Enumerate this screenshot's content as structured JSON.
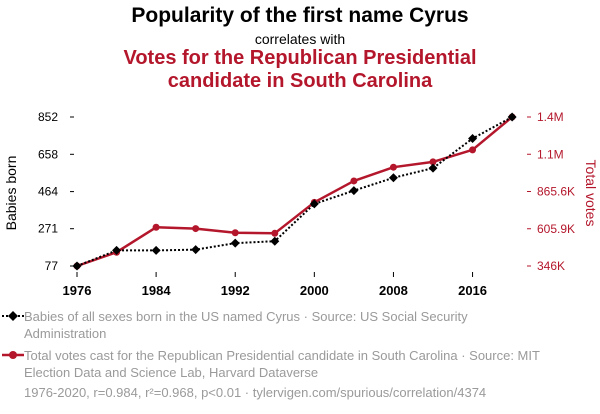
{
  "header": {
    "title": "Popularity of the first name Cyrus",
    "subtitle": "correlates with",
    "title2": "Votes for the Republican Presidential candidate in South Carolina"
  },
  "legend": {
    "series1": "Babies of all sexes born in the US named Cyrus · Source: US Social Security Administration",
    "series2": "Total votes cast for the Republican Presidential candidate in South Carolina · Source: MIT Election Data and Science Lab, Harvard Dataverse"
  },
  "footer": "1976-2020, r=0.984, r²=0.968, p<0.01 · tylervigen.com/spurious/correlation/4374",
  "colors": {
    "series1": "#000000",
    "series2": "#b4172c",
    "axis_left": "#000000",
    "axis_right": "#b4172c",
    "legend_text": "#9a9a9a"
  },
  "chart_data": {
    "type": "line",
    "x": [
      1976,
      1980,
      1984,
      1988,
      1992,
      1996,
      2000,
      2004,
      2008,
      2012,
      2016,
      2020
    ],
    "xticks": [
      "1976",
      "1984",
      "1992",
      "2000",
      "2008",
      "2016"
    ],
    "xlim": [
      1976,
      2021
    ],
    "ylabel": "Babies born",
    "y2label": "Total votes",
    "yticks": [
      "77",
      "271",
      "464",
      "658",
      "852"
    ],
    "ylim": [
      77,
      852
    ],
    "y2ticks": [
      "346K",
      "605.9K",
      "865.6K",
      "1.1M",
      "1.4M"
    ],
    "y2lim": [
      346000,
      1385000
    ],
    "grid": false,
    "series": [
      {
        "name": "Babies of all sexes born in the US named Cyrus",
        "axis": "left",
        "style": "dotted",
        "marker": "diamond",
        "values": [
          77,
          158,
          158,
          162,
          196,
          206,
          400,
          469,
          536,
          586,
          740,
          852
        ]
      },
      {
        "name": "Total votes cast for the Republican Presidential candidate in South Carolina",
        "axis": "right",
        "style": "solid",
        "marker": "circle",
        "values": [
          346000,
          442000,
          616000,
          607000,
          578000,
          574000,
          790000,
          939000,
          1035000,
          1072000,
          1156000,
          1385000
        ]
      }
    ]
  }
}
